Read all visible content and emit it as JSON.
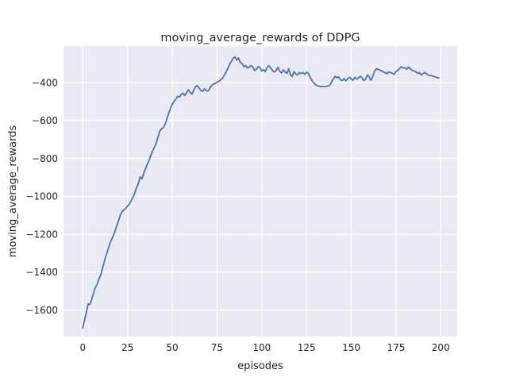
{
  "figure": {
    "title": "moving_average_rewards of DDPG",
    "xlabel": "episodes",
    "ylabel": "moving_average_rewards"
  },
  "chart_data": {
    "type": "line",
    "title": "moving_average_rewards of DDPG",
    "xlabel": "episodes",
    "ylabel": "moving_average_rewards",
    "x": {
      "start": 0,
      "step": 1,
      "count": 200
    },
    "values": [
      -1695,
      -1650,
      -1612,
      -1568,
      -1570,
      -1543,
      -1510,
      -1482,
      -1463,
      -1438,
      -1415,
      -1380,
      -1345,
      -1312,
      -1284,
      -1252,
      -1230,
      -1208,
      -1182,
      -1155,
      -1128,
      -1098,
      -1080,
      -1072,
      -1063,
      -1052,
      -1040,
      -1024,
      -1006,
      -984,
      -954,
      -934,
      -898,
      -908,
      -880,
      -854,
      -832,
      -810,
      -784,
      -760,
      -742,
      -718,
      -688,
      -656,
      -644,
      -638,
      -618,
      -590,
      -562,
      -536,
      -514,
      -498,
      -487,
      -472,
      -476,
      -462,
      -456,
      -468,
      -452,
      -438,
      -453,
      -461,
      -440,
      -420,
      -416,
      -428,
      -442,
      -446,
      -432,
      -442,
      -445,
      -428,
      -415,
      -408,
      -404,
      -398,
      -392,
      -386,
      -378,
      -362,
      -345,
      -325,
      -305,
      -288,
      -272,
      -264,
      -281,
      -270,
      -292,
      -300,
      -317,
      -309,
      -324,
      -317,
      -310,
      -318,
      -336,
      -330,
      -315,
      -320,
      -339,
      -331,
      -342,
      -319,
      -311,
      -324,
      -336,
      -344,
      -337,
      -319,
      -339,
      -350,
      -333,
      -343,
      -351,
      -327,
      -358,
      -367,
      -342,
      -354,
      -360,
      -347,
      -352,
      -347,
      -356,
      -346,
      -350,
      -372,
      -388,
      -400,
      -410,
      -416,
      -419,
      -421,
      -420,
      -421,
      -420,
      -418,
      -414,
      -396,
      -380,
      -367,
      -374,
      -369,
      -386,
      -389,
      -379,
      -391,
      -380,
      -371,
      -381,
      -388,
      -372,
      -382,
      -375,
      -366,
      -375,
      -389,
      -382,
      -359,
      -370,
      -388,
      -368,
      -341,
      -327,
      -330,
      -334,
      -339,
      -344,
      -348,
      -353,
      -343,
      -347,
      -352,
      -356,
      -341,
      -335,
      -325,
      -316,
      -323,
      -322,
      -329,
      -318,
      -326,
      -335,
      -339,
      -342,
      -351,
      -347,
      -360,
      -353,
      -347,
      -353,
      -360,
      -362,
      -364,
      -367,
      -370,
      -373,
      -376
    ],
    "xlim": [
      -10.8,
      209.2
    ],
    "ylim": [
      -1740,
      -207
    ],
    "xticks": [
      0,
      25,
      50,
      75,
      100,
      125,
      150,
      175,
      200
    ],
    "xtick_labels": [
      "0",
      "25",
      "50",
      "75",
      "100",
      "125",
      "150",
      "175",
      "200"
    ],
    "yticks": [
      -400,
      -600,
      -800,
      -1000,
      -1200,
      -1400,
      -1600
    ],
    "ytick_labels": [
      "−400",
      "−600",
      "−800",
      "−1000",
      "−1200",
      "−1400",
      "−1600"
    ],
    "grid": true,
    "legend_position": "none",
    "line_color": "#4c72b0",
    "plot_bg_color": "#eaeaf2",
    "grid_color": "#ffffff",
    "text_color": "#262626"
  }
}
